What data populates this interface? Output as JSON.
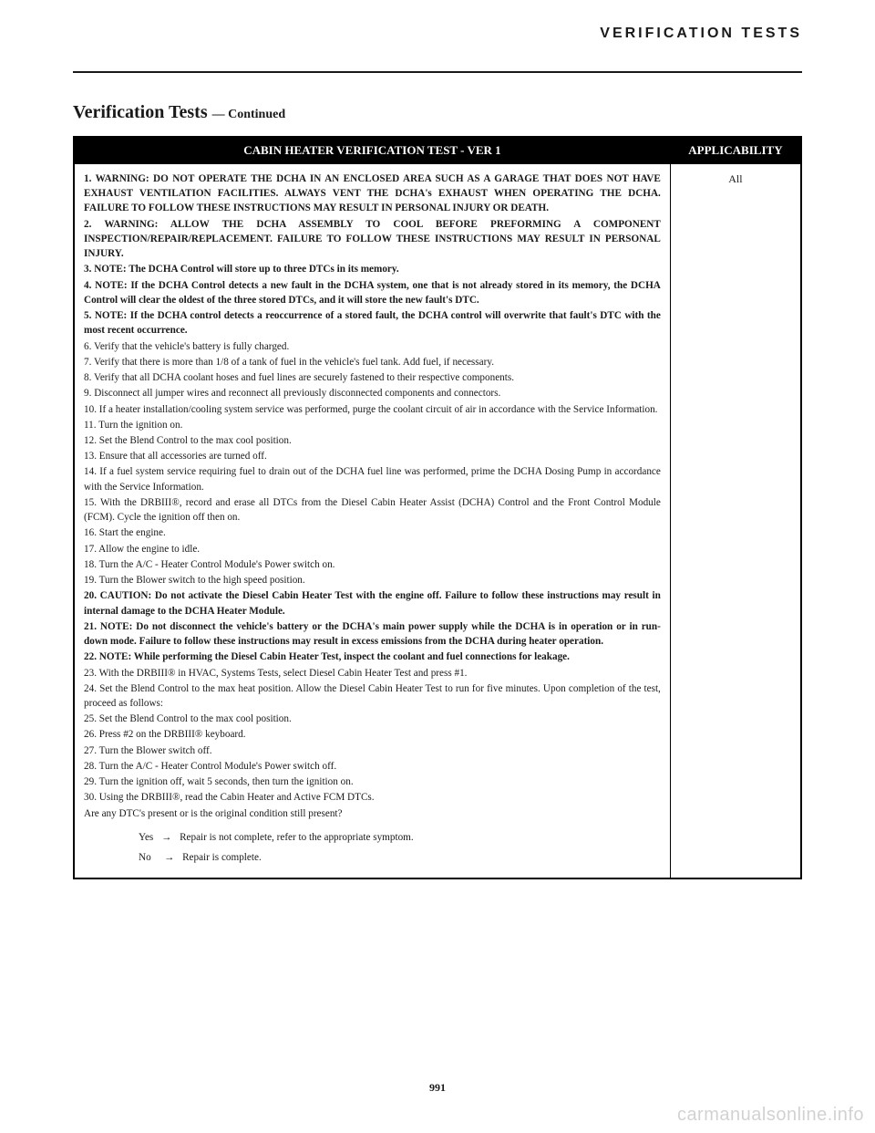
{
  "header": {
    "section": "VERIFICATION TESTS",
    "title_main": "Verification Tests",
    "title_continued": "— Continued"
  },
  "table": {
    "col_test": "CABIN HEATER VERIFICATION TEST - VER 1",
    "col_app": "APPLICABILITY",
    "applicability": "All",
    "steps": [
      {
        "bold": true,
        "justify": true,
        "text": "1. WARNING: DO NOT OPERATE THE DCHA IN AN ENCLOSED AREA SUCH AS A GARAGE THAT DOES NOT HAVE EXHAUST VENTILATION FACILITIES. ALWAYS VENT THE DCHA's EXHAUST WHEN OPERATING THE DCHA. FAILURE TO FOLLOW THESE INSTRUCTIONS MAY RESULT IN PERSONAL INJURY OR DEATH."
      },
      {
        "bold": true,
        "justify": true,
        "text": "2. WARNING: ALLOW THE DCHA ASSEMBLY TO COOL BEFORE PREFORMING A COMPONENT INSPECTION/REPAIR/REPLACEMENT. FAILURE TO FOLLOW THESE INSTRUCTIONS MAY RESULT IN PERSONAL INJURY."
      },
      {
        "bold": true,
        "justify": false,
        "text": "3. NOTE: The DCHA Control will store up to three DTCs in its memory."
      },
      {
        "bold": true,
        "justify": true,
        "text": "4. NOTE: If the DCHA Control detects a new fault in the DCHA system, one that is not already stored in its memory, the DCHA Control will clear the oldest of the three stored DTCs, and it will store the new fault's DTC."
      },
      {
        "bold": true,
        "justify": true,
        "text": "5. NOTE: If the DCHA control detects a reoccurrence of a stored fault, the DCHA control will overwrite that fault's DTC with the most recent occurrence."
      },
      {
        "bold": false,
        "justify": false,
        "text": "6. Verify that the vehicle's battery is fully charged."
      },
      {
        "bold": false,
        "justify": true,
        "text": "7. Verify that there is more than 1/8 of a tank of fuel in the vehicle's fuel tank. Add fuel, if necessary."
      },
      {
        "bold": false,
        "justify": true,
        "text": "8. Verify that all DCHA coolant hoses and fuel lines are securely fastened to their respective components."
      },
      {
        "bold": false,
        "justify": true,
        "text": "9. Disconnect all jumper wires and reconnect all previously disconnected components and connectors."
      },
      {
        "bold": false,
        "justify": true,
        "text": "10. If a heater installation/cooling system service was performed, purge the coolant circuit of air in accordance with the Service Information."
      },
      {
        "bold": false,
        "justify": false,
        "text": "11. Turn the ignition on."
      },
      {
        "bold": false,
        "justify": false,
        "text": "12. Set the Blend Control to the max cool position."
      },
      {
        "bold": false,
        "justify": false,
        "text": "13. Ensure that all accessories are turned off."
      },
      {
        "bold": false,
        "justify": true,
        "text": "14. If a fuel system service requiring fuel to drain out of the DCHA fuel line was performed, prime the DCHA Dosing Pump in accordance with the Service Information."
      },
      {
        "bold": false,
        "justify": true,
        "text": "15. With the DRBIII®, record and erase all DTCs from the Diesel Cabin Heater Assist (DCHA) Control and the Front Control Module (FCM). Cycle the ignition off then on."
      },
      {
        "bold": false,
        "justify": false,
        "text": "16. Start the engine."
      },
      {
        "bold": false,
        "justify": false,
        "text": "17. Allow the engine to idle."
      },
      {
        "bold": false,
        "justify": false,
        "text": "18. Turn the A/C - Heater Control Module's Power switch on."
      },
      {
        "bold": false,
        "justify": false,
        "text": "19. Turn the Blower switch to the high speed position."
      },
      {
        "bold": true,
        "justify": true,
        "text": "20. CAUTION: Do not activate the Diesel Cabin Heater Test with the engine off. Failure to follow these instructions may result in internal damage to the DCHA Heater Module."
      },
      {
        "bold": true,
        "justify": true,
        "text": "21. NOTE: Do not disconnect the vehicle's battery or the DCHA's main power supply while the DCHA is in operation or in run-down mode. Failure to follow these instructions may result in excess emissions from the DCHA during heater operation."
      },
      {
        "bold": true,
        "justify": true,
        "text": "22. NOTE: While performing the Diesel Cabin Heater Test, inspect the coolant and fuel connections for leakage."
      },
      {
        "bold": false,
        "justify": false,
        "text": "23. With the DRBIII® in HVAC, Systems Tests, select Diesel Cabin Heater Test and press #1."
      },
      {
        "bold": false,
        "justify": true,
        "text": "24. Set the Blend Control to the max heat position. Allow the Diesel Cabin Heater Test to run for five minutes. Upon completion of the test, proceed as follows:"
      },
      {
        "bold": false,
        "justify": false,
        "text": "25. Set the Blend Control to the max cool position."
      },
      {
        "bold": false,
        "justify": false,
        "text": "26. Press #2 on the DRBIII® keyboard."
      },
      {
        "bold": false,
        "justify": false,
        "text": "27. Turn the Blower switch off."
      },
      {
        "bold": false,
        "justify": false,
        "text": "28. Turn the A/C - Heater Control Module's Power switch off."
      },
      {
        "bold": false,
        "justify": false,
        "text": "29. Turn the ignition off, wait 5 seconds, then turn the ignition on."
      },
      {
        "bold": false,
        "justify": false,
        "text": "30. Using the DRBIII®, read the Cabin Heater and Active FCM DTCs."
      },
      {
        "bold": false,
        "justify": false,
        "text": "Are any DTC's present or is the original condition still present?"
      }
    ],
    "yes_label": "Yes",
    "no_label": "No",
    "yes_text": "Repair is not complete, refer to the appropriate symptom.",
    "no_text": "Repair is complete."
  },
  "footer": {
    "page_number": "991",
    "watermark": "carmanualsonline.info"
  }
}
